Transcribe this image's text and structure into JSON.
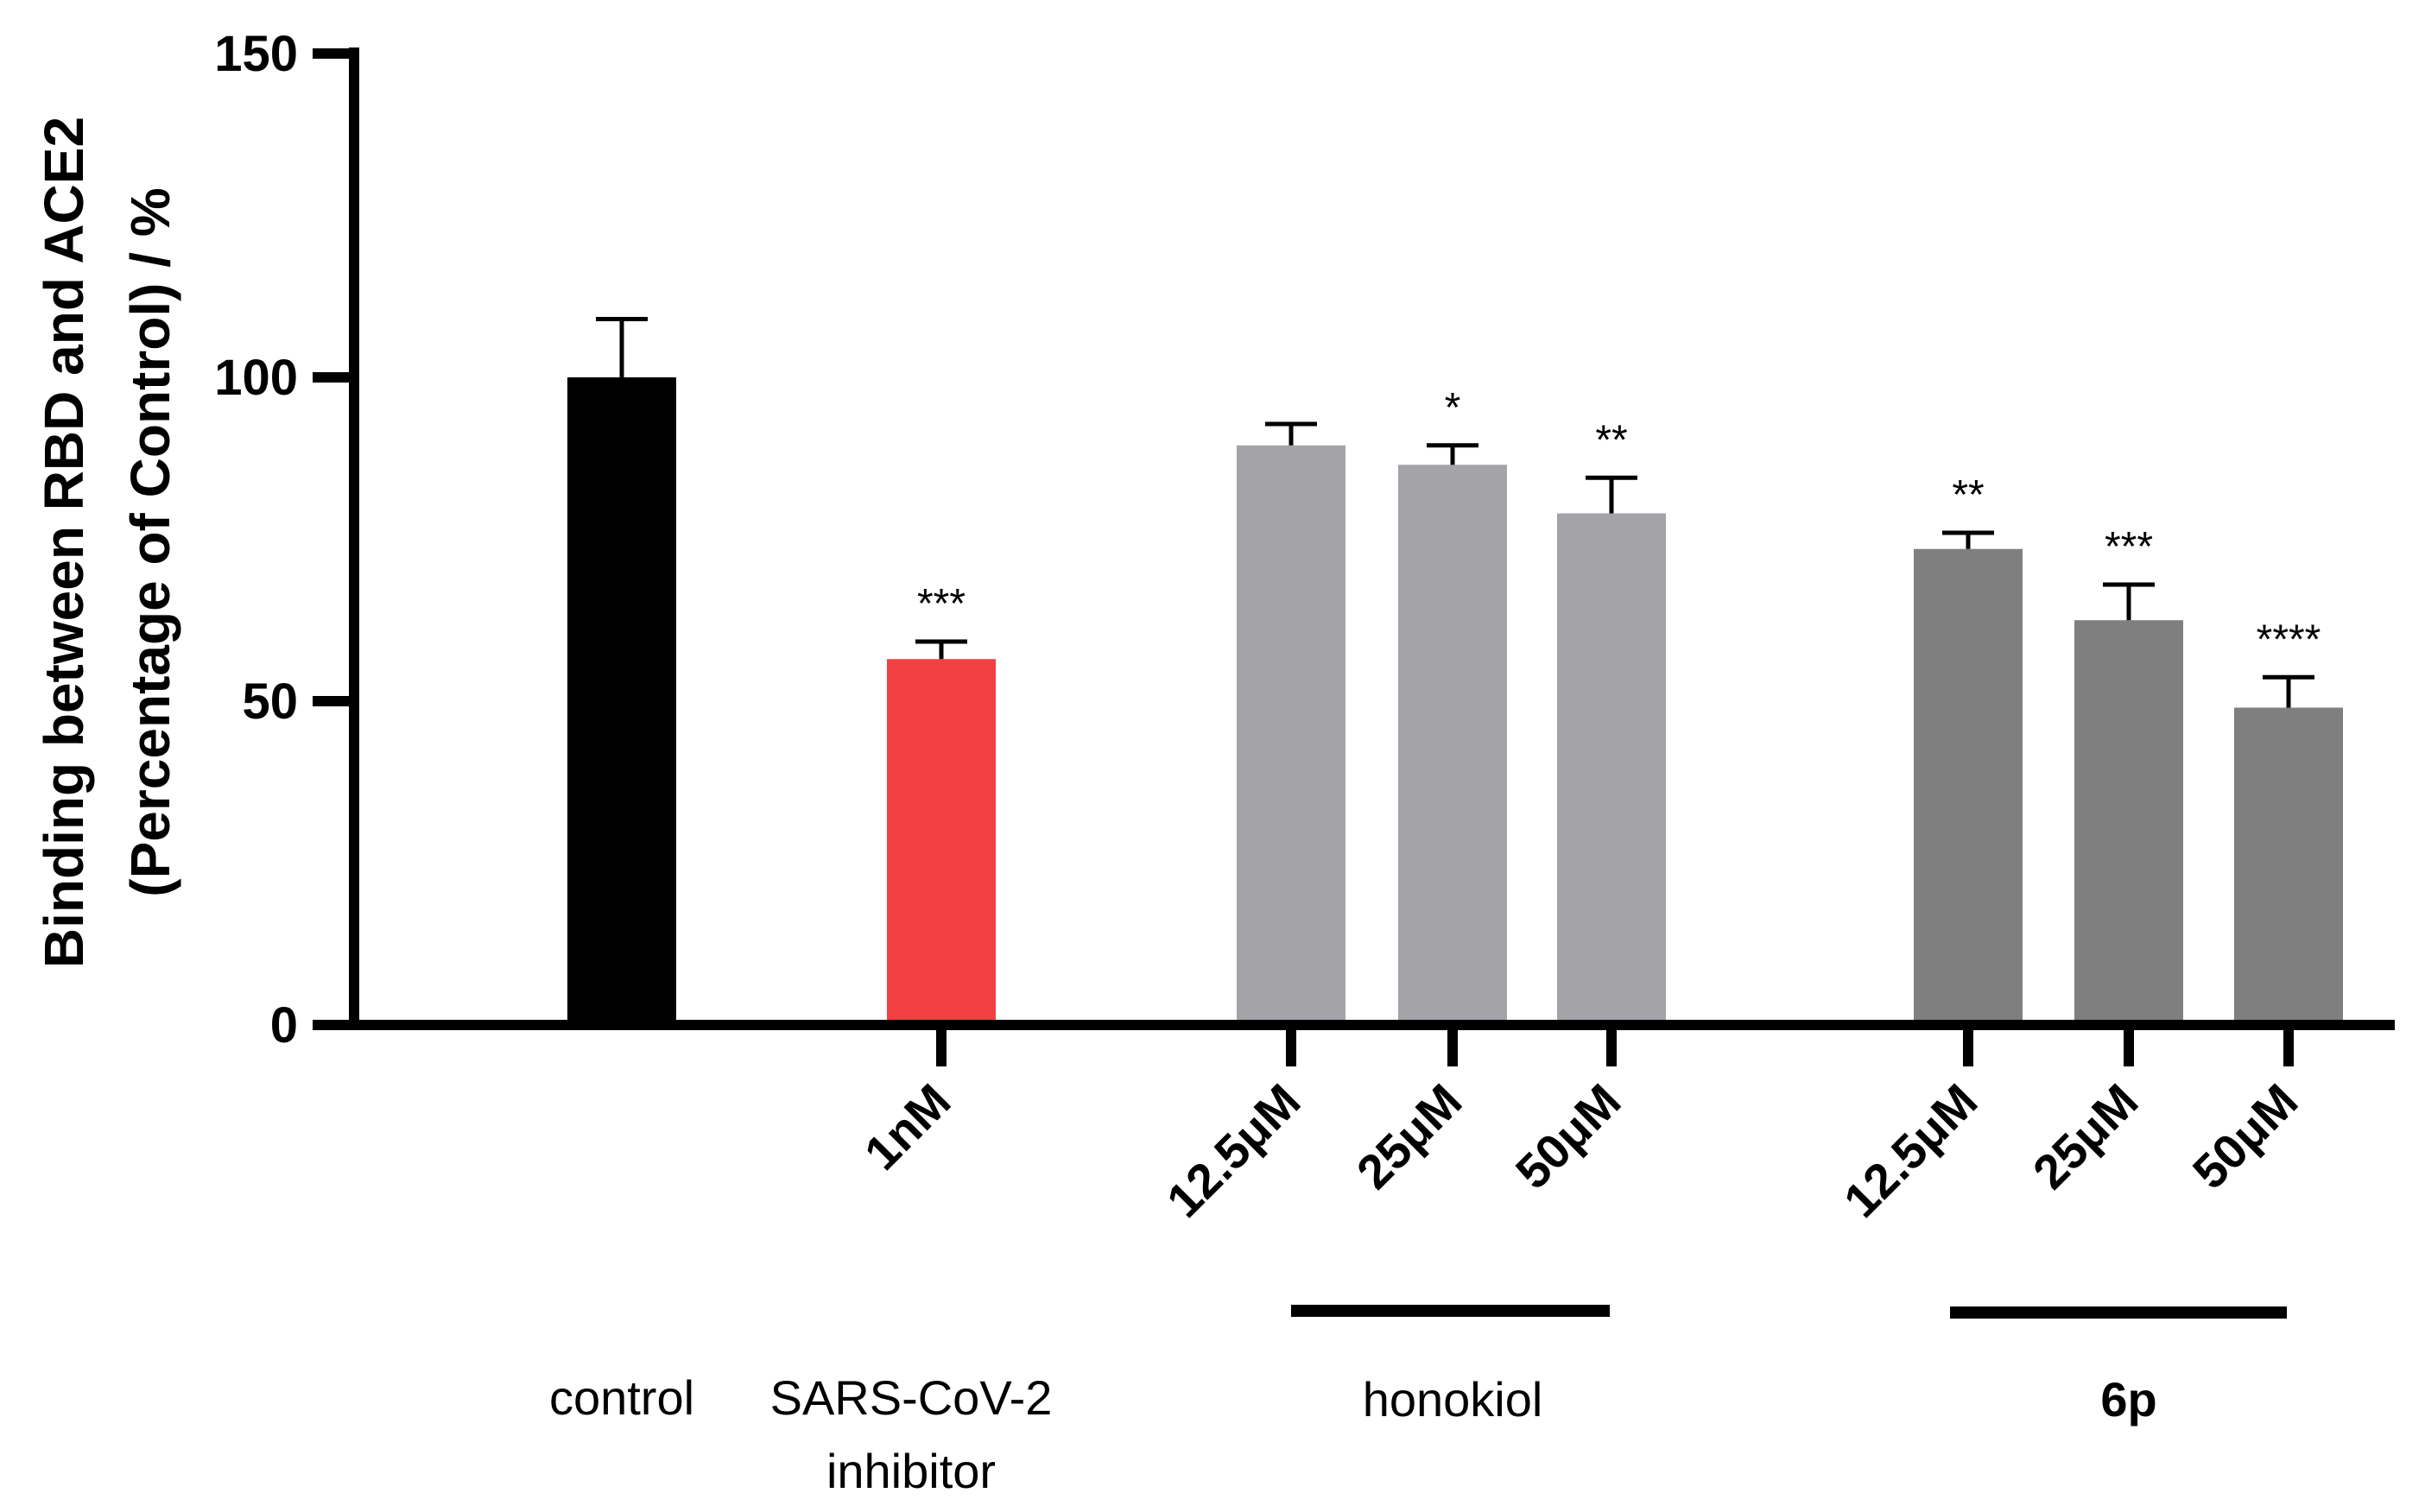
{
  "chart_data": {
    "type": "bar",
    "ylabel_lines": [
      "Binding between RBD and ACE2",
      "(Percentage of Control) / %"
    ],
    "ylim": [
      0,
      150
    ],
    "yticks": [
      0,
      50,
      100,
      150
    ],
    "bars": [
      {
        "group": "control",
        "dose": "",
        "value": 100,
        "error": 9,
        "sig": "",
        "color": "#000000"
      },
      {
        "group": "SARS-CoV-2 inhibitor",
        "dose": "1nM",
        "value": 56.5,
        "error": 2.7,
        "sig": "***",
        "color": "#f24040"
      },
      {
        "group": "honokiol",
        "dose": "12.5μM",
        "value": 89.5,
        "error": 3.3,
        "sig": "",
        "color": "#a3a3a8"
      },
      {
        "group": "honokiol",
        "dose": "25μM",
        "value": 86.5,
        "error": 3.0,
        "sig": "*",
        "color": "#a3a3a8"
      },
      {
        "group": "honokiol",
        "dose": "50μM",
        "value": 79,
        "error": 5.5,
        "sig": "**",
        "color": "#a3a3a8"
      },
      {
        "group": "6p",
        "dose": "12.5μM",
        "value": 73.5,
        "error": 2.5,
        "sig": "**",
        "color": "#7f7f7f"
      },
      {
        "group": "6p",
        "dose": "25μM",
        "value": 62.5,
        "error": 5.5,
        "sig": "***",
        "color": "#7f7f7f"
      },
      {
        "group": "6p",
        "dose": "50μM",
        "value": 49,
        "error": 4.7,
        "sig": "****",
        "color": "#7f7f7f"
      }
    ],
    "group_labels": {
      "control": "control",
      "inhibitor_line1": "SARS-CoV-2",
      "inhibitor_line2": "inhibitor",
      "honokiol": "honokiol",
      "sixp": "6p"
    },
    "grid": false,
    "legend": "none"
  }
}
